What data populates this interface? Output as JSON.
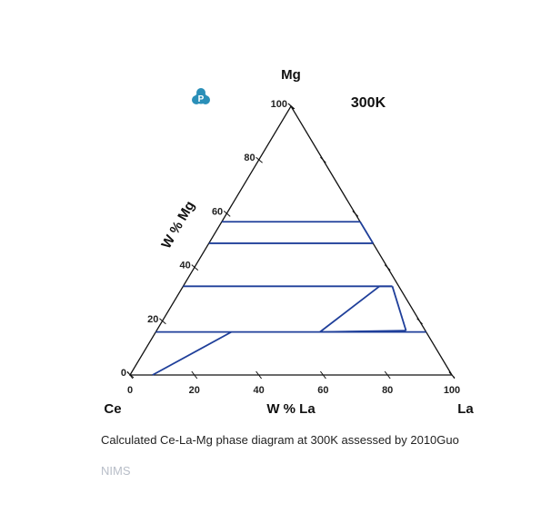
{
  "corners": {
    "bottom_left": "Ce",
    "bottom_right": "La",
    "top": "Mg"
  },
  "temperature_label": "300K",
  "x_axis_title": "W % La",
  "left_axis_title": "W % Mg",
  "x_ticks": [
    "0",
    "20",
    "40",
    "60",
    "80",
    "100"
  ],
  "mg_ticks": [
    "0",
    "20",
    "40",
    "60",
    "80",
    "100"
  ],
  "caption": "Calculated Ce-La-Mg phase diagram at 300K assessed by 2010Guo",
  "source": "NIMS",
  "logo": {
    "letter": "P",
    "color": "#2a8fb8"
  },
  "colors": {
    "phase_lines": "#1f3f9a",
    "frame": "#111111"
  },
  "phase_lines": [
    {
      "from": {
        "La": 7,
        "Mg": 0
      },
      "to": {
        "La": 23.5,
        "Mg": 16
      }
    },
    {
      "from": {
        "La": 0,
        "Mg": 16
      },
      "to": {
        "La": 84,
        "Mg": 16
      }
    },
    {
      "from": {
        "La": 51,
        "Mg": 16
      },
      "to": {
        "La": 77.5,
        "Mg": 16.5
      }
    },
    {
      "from": {
        "La": 51,
        "Mg": 16
      },
      "to": {
        "La": 61,
        "Mg": 33
      }
    },
    {
      "from": {
        "La": 61,
        "Mg": 33
      },
      "to": {
        "La": 65,
        "Mg": 33
      }
    },
    {
      "from": {
        "La": 65,
        "Mg": 33
      },
      "to": {
        "La": 77.5,
        "Mg": 16.5
      }
    },
    {
      "from": {
        "La": 0,
        "Mg": 33
      },
      "to": {
        "La": 65,
        "Mg": 33
      }
    },
    {
      "from": {
        "La": 0,
        "Mg": 49
      },
      "to": {
        "La": 51,
        "Mg": 49
      }
    },
    {
      "from": {
        "La": 0,
        "Mg": 57
      },
      "to": {
        "La": 43,
        "Mg": 57
      }
    },
    {
      "from": {
        "La": 43,
        "Mg": 57
      },
      "to": {
        "La": 51,
        "Mg": 49
      }
    }
  ]
}
